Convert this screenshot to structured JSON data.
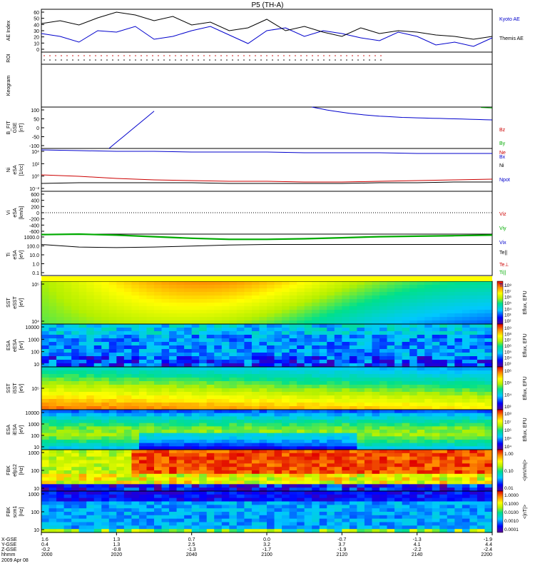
{
  "title": "P5 (TH-A)",
  "chart_data": {
    "type": "line",
    "title": "P5 (TH-A)",
    "x_time_axis": {
      "ticks": [
        {
          "hhmm": "2000",
          "x_gse": "1.6",
          "y_gse": "0.4",
          "z_gse": "-0.2"
        },
        {
          "hhmm": "2020",
          "x_gse": "1.3",
          "y_gse": "1.3",
          "z_gse": "-0.8"
        },
        {
          "hhmm": "2040",
          "x_gse": "0.7",
          "y_gse": "2.5",
          "z_gse": "-1.3"
        },
        {
          "hhmm": "2100",
          "x_gse": "0.0",
          "y_gse": "3.2",
          "z_gse": "-1.7"
        },
        {
          "hhmm": "2120",
          "x_gse": "-0.7",
          "y_gse": "3.7",
          "z_gse": "-1.9"
        },
        {
          "hhmm": "2140",
          "x_gse": "-1.3",
          "y_gse": "4.1",
          "z_gse": "-2.2"
        },
        {
          "hhmm": "2200",
          "x_gse": "-1.9",
          "y_gse": "4.4",
          "z_gse": "-2.4"
        }
      ],
      "row_labels": [
        "X-GSE",
        "Y-GSE",
        "Z-GSE",
        "hhmm"
      ],
      "date": "2009 Apr 08"
    },
    "panels": [
      {
        "id": "ae",
        "ylabel": [
          "AE Index"
        ],
        "yticks": [
          "60",
          "50",
          "40",
          "30",
          "20",
          "10",
          "0"
        ],
        "ylim": [
          0,
          60
        ],
        "series": [
          {
            "name": "Kyoto AE",
            "color": "#0000cc",
            "x": [
              0,
              5,
              10,
              15,
              20,
              25,
              30,
              35,
              40,
              45,
              50,
              55,
              60,
              65,
              70,
              75,
              80,
              85,
              90,
              95,
              100,
              105,
              110,
              115,
              120
            ],
            "y": [
              26,
              22,
              14,
              30,
              28,
              36,
              18,
              22,
              30,
              36,
              24,
              12,
              30,
              34,
              22,
              30,
              26,
              20,
              16,
              28,
              22,
              10,
              14,
              8,
              20
            ]
          },
          {
            "name": "Themis AE",
            "color": "#000000",
            "x": [
              0,
              5,
              10,
              15,
              20,
              25,
              30,
              35,
              40,
              45,
              50,
              55,
              60,
              65,
              70,
              75,
              80,
              85,
              90,
              95,
              100,
              105,
              110,
              115,
              120
            ],
            "y": [
              40,
              44,
              38,
              48,
              56,
              52,
              44,
              50,
              38,
              42,
              30,
              34,
              46,
              30,
              36,
              28,
              22,
              34,
              26,
              30,
              28,
              24,
              22,
              18,
              22
            ]
          }
        ]
      },
      {
        "id": "roi",
        "ylabel": [
          "ROI"
        ],
        "yticks": [],
        "series": []
      },
      {
        "id": "keogram",
        "ylabel": [
          "Keogram"
        ],
        "yticks": [],
        "series": []
      },
      {
        "id": "bfit",
        "ylabel": [
          "B_FIT",
          "GSE",
          "[nT]"
        ],
        "yticks": [
          "100",
          "50",
          "0",
          "-50",
          "-100"
        ],
        "ylim": [
          -100,
          100
        ],
        "series": [
          {
            "name": "Bz",
            "color": "#cc0000",
            "x": [],
            "y": []
          },
          {
            "name": "By",
            "color": "#00aa00",
            "x": [
              117,
              120
            ],
            "y": [
              98,
              96
            ]
          },
          {
            "name": "Bx",
            "color": "#0000cc",
            "x": [
              18,
              20,
              22,
              24,
              26,
              28,
              30,
              32,
              34,
              36,
              38,
              40,
              42,
              44,
              46,
              48,
              50,
              52,
              54,
              56,
              58,
              60,
              62,
              64,
              66,
              68,
              70,
              72,
              74,
              76,
              78,
              80,
              82,
              84,
              86,
              88,
              90,
              92,
              94,
              96,
              98,
              100,
              102,
              104,
              106,
              108,
              110,
              112,
              114,
              116,
              118,
              120
            ],
            "y": [
              -100,
              -70,
              -40,
              -10,
              20,
              50,
              80,
              null,
              null,
              null,
              null,
              null,
              null,
              null,
              null,
              null,
              null,
              null,
              null,
              null,
              null,
              null,
              null,
              null,
              null,
              null,
              null,
              100,
              93,
              86,
              80,
              75,
              70,
              66,
              62,
              59,
              56,
              54,
              52,
              50,
              49,
              48,
              47,
              46,
              45,
              44,
              43,
              42,
              41,
              40,
              39,
              38
            ]
          }
        ]
      },
      {
        "id": "ni",
        "ylabel": [
          "Ni",
          "eSA",
          "[1/cc]"
        ],
        "yticks": [
          "10⁴",
          "10²",
          "10⁰",
          "10⁻²"
        ],
        "ylim": [
          -2,
          4
        ],
        "log": true,
        "series": [
          {
            "name": "Ne",
            "color": "#cc0000",
            "x": [
              0,
              10,
              20,
              30,
              40,
              50,
              60,
              70,
              80,
              90,
              100,
              110,
              120
            ],
            "y": [
              0.3,
              0.1,
              -0.2,
              -0.4,
              -0.5,
              -0.6,
              -0.6,
              -0.7,
              -0.7,
              -0.6,
              -0.5,
              -0.4,
              -0.3
            ]
          },
          {
            "name": "Ni",
            "color": "#000000",
            "x": [
              0,
              10,
              20,
              30,
              40,
              50,
              60,
              70,
              80,
              90,
              100,
              110,
              120
            ],
            "y": [
              -0.9,
              -0.8,
              -0.8,
              -0.8,
              -0.8,
              -0.9,
              -0.9,
              -0.9,
              -0.9,
              -0.8,
              -0.8,
              -0.7,
              -0.7
            ]
          },
          {
            "name": "Npot",
            "color": "#0000cc",
            "x": [
              0,
              10,
              20,
              30,
              40,
              50,
              60,
              70,
              80,
              90,
              100,
              110,
              120
            ],
            "y": [
              3.8,
              3.7,
              3.6,
              3.6,
              3.5,
              3.5,
              3.5,
              3.4,
              3.4,
              3.4,
              3.3,
              3.3,
              3.3
            ]
          }
        ]
      },
      {
        "id": "vi",
        "ylabel": [
          "Vi",
          "eSA",
          "[km/s]"
        ],
        "yticks": [
          "600",
          "400",
          "200",
          "0",
          "-200",
          "-400",
          "-600"
        ],
        "ylim": [
          -600,
          600
        ],
        "series": [
          {
            "name": "Viz",
            "color": "#cc0000",
            "x": [],
            "y": []
          },
          {
            "name": "Viy",
            "color": "#00aa00",
            "x": [],
            "y": []
          },
          {
            "name": "Vix",
            "color": "#0000cc",
            "x": [],
            "y": []
          }
        ]
      },
      {
        "id": "ti",
        "ylabel": [
          "Ti",
          "eSA",
          "[eV]"
        ],
        "yticks": [
          "1000.0",
          "100.0",
          "10.0",
          "1.0",
          "0.1"
        ],
        "ylim": [
          -1,
          3
        ],
        "log": true,
        "series": [
          {
            "name": "Te||",
            "color": "#000000",
            "x": [
              0,
              10,
              20,
              30,
              40,
              50,
              60,
              70,
              80,
              90,
              100,
              110,
              120
            ],
            "y": [
              2.0,
              1.75,
              1.7,
              1.75,
              1.85,
              1.95,
              2.0,
              2.0,
              2.0,
              2.0,
              2.0,
              2.0,
              2.0
            ]
          },
          {
            "name": "Te⊥",
            "color": "#cc0000",
            "x": [],
            "y": []
          },
          {
            "name": "Ti||",
            "color": "#00aa00",
            "x": [
              0,
              10,
              20,
              30,
              40,
              50,
              60,
              70,
              80,
              90,
              100,
              110,
              120
            ],
            "y": [
              2.95,
              3.0,
              2.9,
              2.75,
              2.6,
              2.5,
              2.5,
              2.55,
              2.65,
              2.75,
              2.8,
              2.85,
              2.9
            ]
          },
          {
            "name": "Ti⊥",
            "color": "#0000cc",
            "x": [],
            "y": []
          }
        ]
      },
      {
        "id": "sst1",
        "ylabel": [
          "SST",
          "eSST",
          "[eV]"
        ],
        "yticks": [
          "10⁵",
          "10⁴"
        ],
        "colorbar": {
          "label": "Eflux, EFU",
          "ticks": [
            "10⁸",
            "10⁷",
            "10⁶",
            "10⁵",
            "10⁴",
            "10³",
            "10²"
          ]
        }
      },
      {
        "id": "esa1",
        "ylabel": [
          "ESA",
          "eESA",
          "[eV]"
        ],
        "yticks": [
          "10000",
          "1000",
          "100",
          "10"
        ],
        "colorbar": {
          "label": "Eflux, EFU",
          "ticks": [
            "10⁹",
            "10⁸",
            "10⁷",
            "10⁶",
            "10⁵",
            "10⁴",
            "10³"
          ]
        }
      },
      {
        "id": "sst2",
        "ylabel": [
          "SST",
          "iSST",
          "[eV]"
        ],
        "yticks": [
          "10⁵"
        ],
        "colorbar": {
          "label": "Eflux, EFU",
          "ticks": [
            "10⁶",
            "10⁵",
            "10⁴",
            "10³"
          ]
        }
      },
      {
        "id": "esa2",
        "ylabel": [
          "ESA",
          "iESA",
          "[eV]"
        ],
        "yticks": [
          "10000",
          "1000",
          "100",
          "10"
        ],
        "colorbar": {
          "label": "Eflux, EFU",
          "ticks": [
            "10⁸",
            "10⁷",
            "10⁶",
            "10⁵",
            "10⁴"
          ]
        }
      },
      {
        "id": "fbk1",
        "ylabel": [
          "FBK",
          "efp12",
          "[Hz]"
        ],
        "yticks": [
          "1000",
          "100",
          "10"
        ],
        "colorbar": {
          "label": "<|mV/m|>",
          "ticks": [
            "1.00",
            "0.10",
            "0.01"
          ]
        }
      },
      {
        "id": "fbk2",
        "ylabel": [
          "FBK",
          "scm1",
          "[Hz]"
        ],
        "yticks": [
          "1000",
          "100",
          "10"
        ],
        "colorbar": {
          "label": "<|nT|>",
          "ticks": [
            "1.0000",
            "0.1000",
            "0.0100",
            "0.0010",
            "0.0001"
          ]
        }
      }
    ]
  }
}
